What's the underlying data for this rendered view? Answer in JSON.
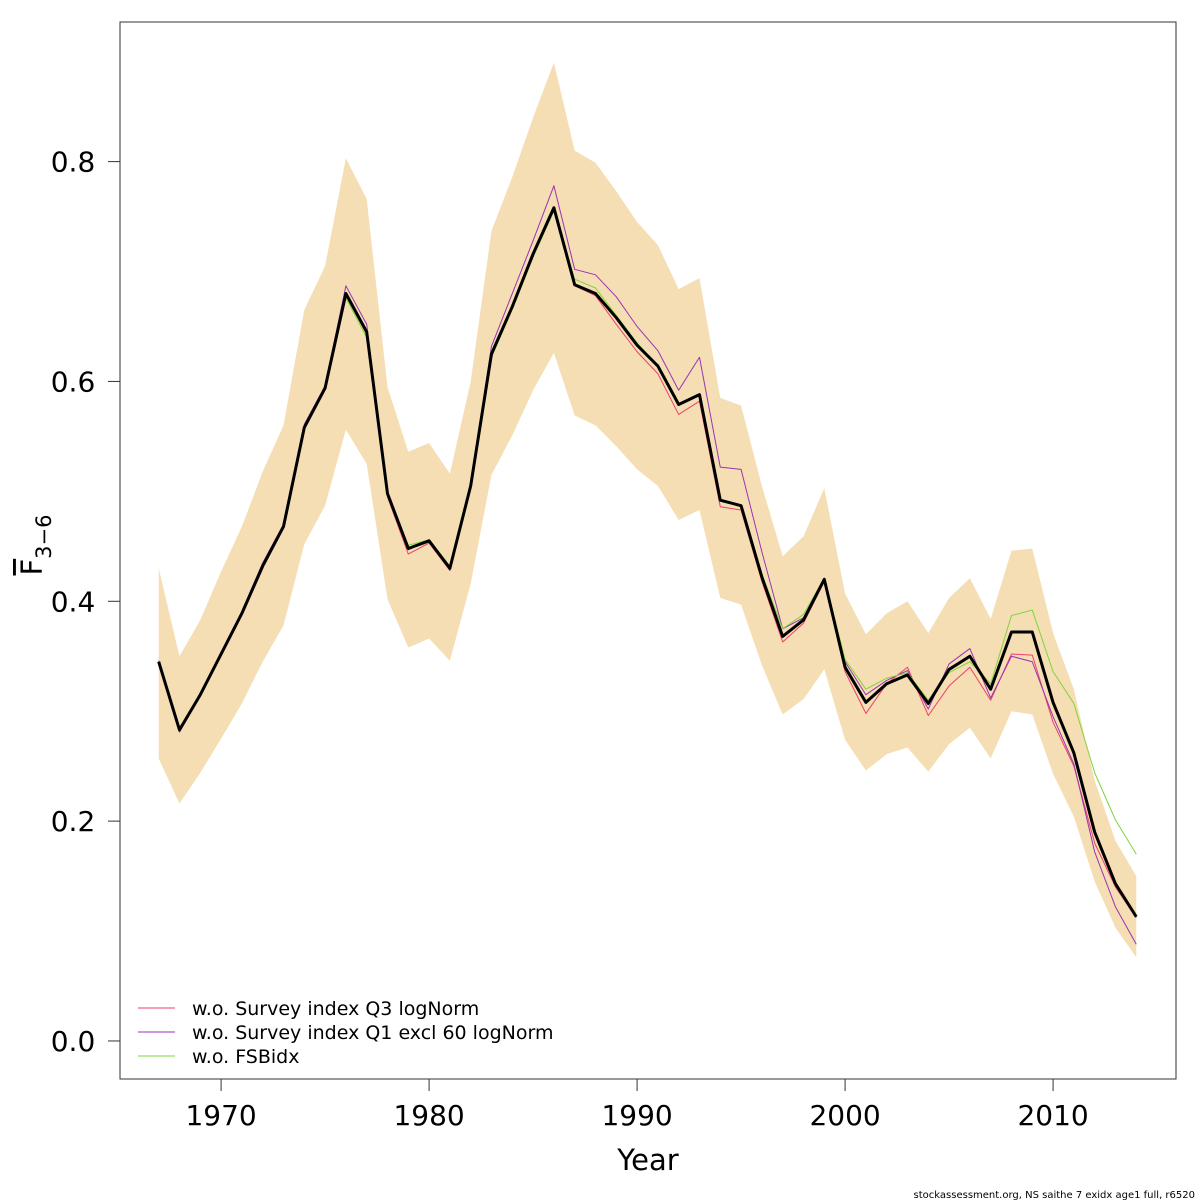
{
  "chart_data": {
    "type": "line",
    "x_label": "Year",
    "y_label": {
      "text": "F",
      "subscript": "3−6"
    },
    "x": [
      1967,
      1968,
      1969,
      1970,
      1971,
      1972,
      1973,
      1974,
      1975,
      1976,
      1977,
      1978,
      1979,
      1980,
      1981,
      1982,
      1983,
      1984,
      1985,
      1986,
      1987,
      1988,
      1989,
      1990,
      1991,
      1992,
      1993,
      1994,
      1995,
      1996,
      1997,
      1998,
      1999,
      2000,
      2001,
      2002,
      2003,
      2004,
      2005,
      2006,
      2007,
      2008,
      2009,
      2010,
      2011,
      2012,
      2013,
      2014
    ],
    "xlim": [
      1965.14,
      2015.91
    ],
    "xticks": [
      1970,
      1980,
      1990,
      2000,
      2010
    ],
    "ylim": [
      -0.0346,
      0.927
    ],
    "yticks": [
      {
        "value": 0,
        "label": "0.0"
      },
      0.2,
      0.4,
      0.6,
      0.8
    ],
    "band": {
      "color": "#f5deb3",
      "upper": [
        0.43,
        0.35,
        0.383,
        0.427,
        0.468,
        0.518,
        0.56,
        0.665,
        0.705,
        0.803,
        0.766,
        0.595,
        0.536,
        0.544,
        0.516,
        0.6,
        0.737,
        0.786,
        0.84,
        0.89,
        0.81,
        0.799,
        0.773,
        0.745,
        0.724,
        0.684,
        0.694,
        0.585,
        0.578,
        0.505,
        0.441,
        0.459,
        0.503,
        0.407,
        0.37,
        0.389,
        0.4,
        0.371,
        0.403,
        0.421,
        0.384,
        0.446,
        0.448,
        0.371,
        0.32,
        0.237,
        0.182,
        0.15
      ],
      "lower": [
        0.257,
        0.216,
        0.244,
        0.275,
        0.307,
        0.345,
        0.378,
        0.452,
        0.487,
        0.556,
        0.525,
        0.402,
        0.358,
        0.366,
        0.346,
        0.416,
        0.515,
        0.551,
        0.592,
        0.626,
        0.569,
        0.56,
        0.541,
        0.52,
        0.505,
        0.474,
        0.483,
        0.403,
        0.397,
        0.342,
        0.297,
        0.311,
        0.338,
        0.274,
        0.246,
        0.261,
        0.267,
        0.245,
        0.27,
        0.285,
        0.257,
        0.3,
        0.297,
        0.243,
        0.204,
        0.145,
        0.103,
        0.076
      ]
    },
    "estimate": {
      "color": "#000000",
      "values": [
        0.345,
        0.283,
        0.315,
        0.352,
        0.389,
        0.432,
        0.468,
        0.558,
        0.594,
        0.68,
        0.645,
        0.498,
        0.448,
        0.455,
        0.43,
        0.505,
        0.625,
        0.668,
        0.716,
        0.758,
        0.688,
        0.68,
        0.658,
        0.633,
        0.614,
        0.579,
        0.588,
        0.492,
        0.487,
        0.422,
        0.368,
        0.383,
        0.42,
        0.34,
        0.308,
        0.325,
        0.333,
        0.307,
        0.338,
        0.35,
        0.32,
        0.372,
        0.372,
        0.308,
        0.262,
        0.19,
        0.143,
        0.113
      ]
    },
    "series": [
      {
        "name": "w.o. Survey index Q3 logNorm",
        "color": "#ee3f6a",
        "values": [
          0.343,
          0.281,
          0.314,
          0.351,
          0.388,
          0.433,
          0.468,
          0.557,
          0.593,
          0.679,
          0.644,
          0.495,
          0.443,
          0.453,
          0.428,
          0.503,
          0.623,
          0.667,
          0.713,
          0.756,
          0.687,
          0.678,
          0.652,
          0.627,
          0.607,
          0.57,
          0.582,
          0.486,
          0.483,
          0.418,
          0.363,
          0.38,
          0.418,
          0.336,
          0.298,
          0.325,
          0.34,
          0.296,
          0.323,
          0.34,
          0.31,
          0.352,
          0.351,
          0.29,
          0.25,
          0.18,
          0.14,
          0.112
        ]
      },
      {
        "name": "w.o. Survey index Q1 excl 60 logNorm",
        "color": "#9933b3",
        "values": [
          0.346,
          0.281,
          0.316,
          0.353,
          0.391,
          0.435,
          0.47,
          0.561,
          0.596,
          0.687,
          0.652,
          0.5,
          0.447,
          0.456,
          0.428,
          0.507,
          0.632,
          0.68,
          0.728,
          0.778,
          0.702,
          0.697,
          0.677,
          0.65,
          0.628,
          0.592,
          0.622,
          0.522,
          0.52,
          0.445,
          0.375,
          0.385,
          0.421,
          0.345,
          0.315,
          0.328,
          0.337,
          0.302,
          0.343,
          0.357,
          0.312,
          0.35,
          0.345,
          0.295,
          0.252,
          0.172,
          0.122,
          0.088
        ]
      },
      {
        "name": "w.o. FSBidx",
        "color": "#7fd43b",
        "values": [
          0.343,
          0.285,
          0.315,
          0.352,
          0.389,
          0.431,
          0.467,
          0.557,
          0.593,
          0.676,
          0.64,
          0.497,
          0.451,
          0.456,
          0.432,
          0.505,
          0.622,
          0.666,
          0.713,
          0.755,
          0.693,
          0.685,
          0.66,
          0.635,
          0.614,
          0.58,
          0.587,
          0.492,
          0.487,
          0.425,
          0.375,
          0.388,
          0.421,
          0.347,
          0.32,
          0.33,
          0.335,
          0.31,
          0.335,
          0.345,
          0.325,
          0.387,
          0.392,
          0.336,
          0.307,
          0.244,
          0.201,
          0.17
        ]
      }
    ],
    "legend_position": "bottom-left",
    "footer": "stockassessment.org, NS saithe 7 exidx age1 full, r6520"
  }
}
